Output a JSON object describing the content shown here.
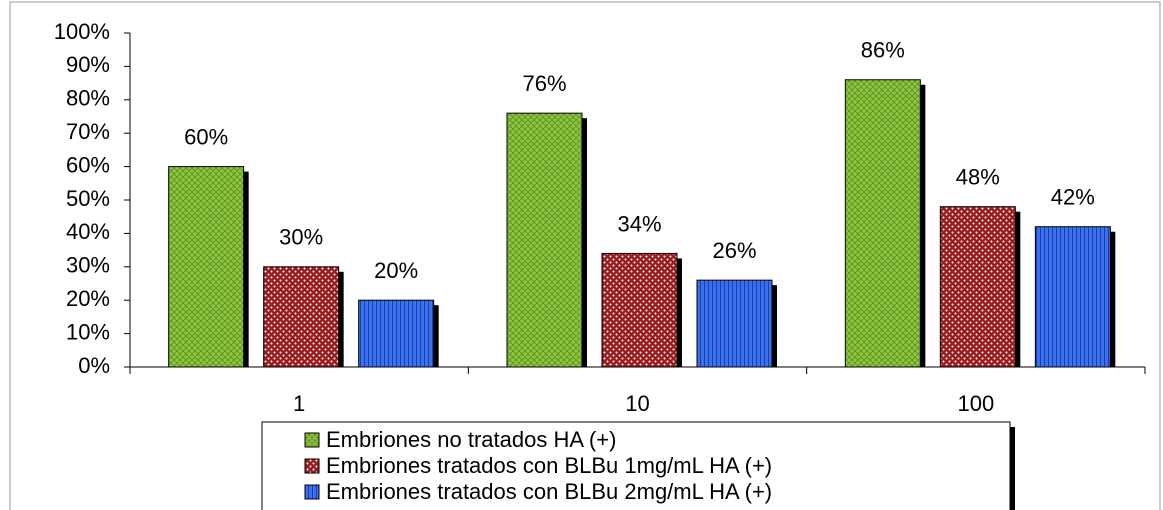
{
  "chart_data": {
    "type": "bar",
    "categories": [
      "1",
      "10",
      "100"
    ],
    "series": [
      {
        "name": "Embriones no tratados HA (+)",
        "color": "#8cc63e",
        "values": [
          60,
          76,
          86
        ],
        "value_labels": [
          "60%",
          "76%",
          "86%"
        ]
      },
      {
        "name": "Embriones tratados con BLBu 1mg/mL HA (+)",
        "color": "#9a1c1c",
        "values": [
          30,
          34,
          48
        ],
        "value_labels": [
          "30%",
          "34%",
          "48%"
        ]
      },
      {
        "name": "Embriones tratados con BLBu 2mg/mL HA (+)",
        "color": "#3a6ff0",
        "values": [
          20,
          26,
          42
        ],
        "value_labels": [
          "20%",
          "26%",
          "42%"
        ]
      }
    ],
    "ylim": [
      0,
      100
    ],
    "yticks": [
      {
        "value": 0,
        "label": "0%"
      },
      {
        "value": 10,
        "label": "10%"
      },
      {
        "value": 20,
        "label": "20%"
      },
      {
        "value": 30,
        "label": "30%"
      },
      {
        "value": 40,
        "label": "40%"
      },
      {
        "value": 50,
        "label": "50%"
      },
      {
        "value": 60,
        "label": "60%"
      },
      {
        "value": 70,
        "label": "70%"
      },
      {
        "value": 80,
        "label": "80%"
      },
      {
        "value": 90,
        "label": "90%"
      },
      {
        "value": 100,
        "label": "100%"
      }
    ],
    "legend": "bottom"
  }
}
